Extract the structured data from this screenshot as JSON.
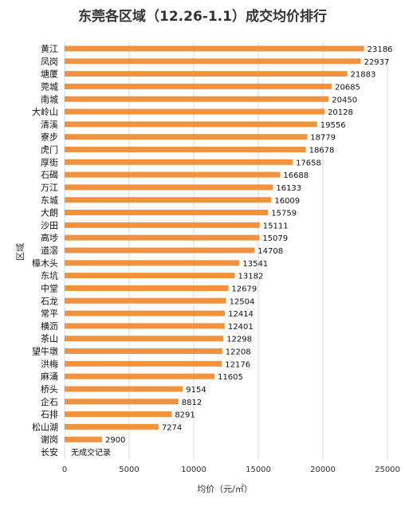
{
  "chart_data": {
    "type": "bar",
    "orientation": "horizontal",
    "title": "东莞各区域（12.26-1.1）成交均价排行",
    "xlabel": "均价（元/㎡）",
    "ylabel": "区域",
    "xlim": [
      0,
      25000
    ],
    "xticks": [
      "0",
      "5000",
      "10000",
      "15000",
      "20000",
      "25000"
    ],
    "grid": true,
    "bar_color": "#F0923E",
    "categories": [
      "黄江",
      "凤岗",
      "塘厦",
      "莞城",
      "南城",
      "大岭山",
      "清溪",
      "寮步",
      "虎门",
      "厚街",
      "石碣",
      "万江",
      "东城",
      "大朗",
      "沙田",
      "高埗",
      "道滘",
      "樟木头",
      "东坑",
      "中堂",
      "石龙",
      "常平",
      "横沥",
      "茶山",
      "望牛墩",
      "洪梅",
      "麻涌",
      "桥头",
      "企石",
      "石排",
      "松山湖",
      "谢岗",
      "长安"
    ],
    "values": [
      23186,
      22937,
      21883,
      20685,
      20450,
      20128,
      19556,
      18779,
      18678,
      17658,
      16688,
      16133,
      16009,
      15759,
      15111,
      15079,
      14708,
      13541,
      13182,
      12679,
      12504,
      12414,
      12401,
      12298,
      12208,
      12176,
      11605,
      9154,
      8812,
      8291,
      7274,
      2900,
      null
    ],
    "value_labels": [
      "23186",
      "22937",
      "21883",
      "20685",
      "20450",
      "20128",
      "19556",
      "18779",
      "18678",
      "17658",
      "16688",
      "16133",
      "16009",
      "15759",
      "15111",
      "15079",
      "14708",
      "13541",
      "13182",
      "12679",
      "12504",
      "12414",
      "12401",
      "12298",
      "12208",
      "12176",
      "11605",
      "9154",
      "8812",
      "8291",
      "7274",
      "2900",
      "无成交记录"
    ]
  }
}
